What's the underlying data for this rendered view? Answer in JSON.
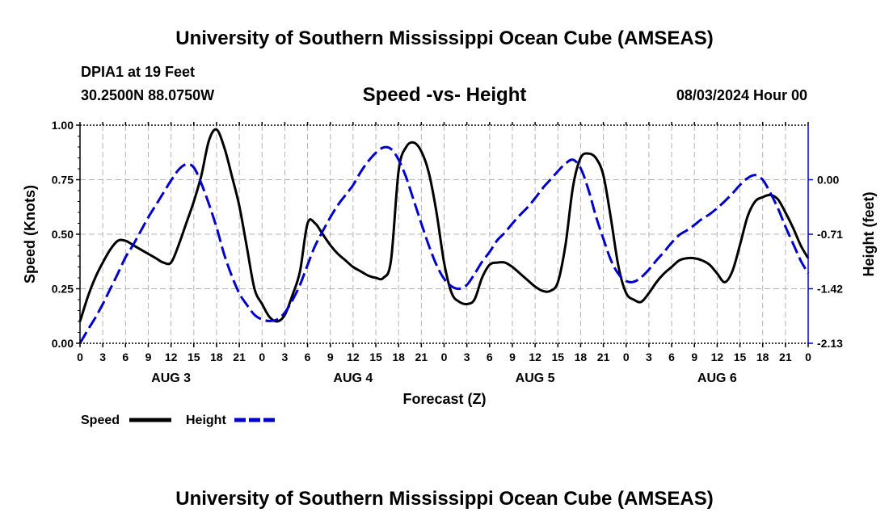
{
  "header": {
    "title": "University of Southern Mississippi Ocean Cube (AMSEAS)",
    "station": "DPIA1 at 19 Feet",
    "coords": "30.2500N  88.0750W",
    "chart_title": "Speed -vs- Height",
    "datetime": "08/03/2024 Hour 00"
  },
  "footer": {
    "title": "University of Southern Mississippi Ocean Cube (AMSEAS)"
  },
  "chart_data": {
    "type": "line",
    "title": "Speed -vs- Height",
    "xlabel": "Forecast (Z)",
    "ylabel": "Speed (Knots)",
    "y2label": "Height (feet)",
    "xlim": [
      0,
      96
    ],
    "ylim": [
      0,
      1
    ],
    "y2lim": [
      -2.13,
      0.71
    ],
    "x_ticks": [
      0,
      3,
      6,
      9,
      12,
      15,
      18,
      21,
      24,
      27,
      30,
      33,
      36,
      39,
      42,
      45,
      48,
      51,
      54,
      57,
      60,
      63,
      66,
      69,
      72,
      75,
      78,
      81,
      84,
      87,
      90,
      93,
      96
    ],
    "x_tick_labels": [
      "0",
      "3",
      "6",
      "9",
      "12",
      "15",
      "18",
      "21",
      "0",
      "3",
      "6",
      "9",
      "12",
      "15",
      "18",
      "21",
      "0",
      "3",
      "6",
      "9",
      "12",
      "15",
      "18",
      "21",
      "0",
      "3",
      "6",
      "9",
      "12",
      "15",
      "18",
      "21",
      "0"
    ],
    "day_labels": [
      {
        "x": 12,
        "label": "AUG 3"
      },
      {
        "x": 36,
        "label": "AUG 4"
      },
      {
        "x": 60,
        "label": "AUG 5"
      },
      {
        "x": 84,
        "label": "AUG 6"
      }
    ],
    "y_ticks": [
      0,
      0.25,
      0.5,
      0.75,
      1.0
    ],
    "y_tick_labels": [
      "0.00",
      "0.25",
      "0.50",
      "0.75",
      "1.00"
    ],
    "y2_ticks": [
      0.0,
      -0.71,
      -1.42,
      -2.13
    ],
    "y2_tick_labels": [
      "0.00",
      "-0.71",
      "-1.42",
      "-2.13"
    ],
    "grid": true,
    "legend": {
      "position": "bottom-left",
      "entries": [
        "Speed",
        "Height"
      ]
    },
    "series": [
      {
        "name": "Speed",
        "axis": "left",
        "color": "#000000",
        "style": "solid",
        "points": [
          [
            0,
            0.1
          ],
          [
            1,
            0.21
          ],
          [
            2,
            0.3
          ],
          [
            3,
            0.37
          ],
          [
            4,
            0.43
          ],
          [
            5,
            0.47
          ],
          [
            6,
            0.47
          ],
          [
            7,
            0.45
          ],
          [
            8,
            0.43
          ],
          [
            9,
            0.41
          ],
          [
            10,
            0.39
          ],
          [
            11,
            0.37
          ],
          [
            12,
            0.37
          ],
          [
            13,
            0.45
          ],
          [
            14,
            0.55
          ],
          [
            15,
            0.65
          ],
          [
            16,
            0.77
          ],
          [
            17,
            0.93
          ],
          [
            18,
            0.98
          ],
          [
            19,
            0.9
          ],
          [
            20,
            0.77
          ],
          [
            21,
            0.63
          ],
          [
            22,
            0.44
          ],
          [
            23,
            0.25
          ],
          [
            24,
            0.18
          ],
          [
            25,
            0.12
          ],
          [
            26,
            0.1
          ],
          [
            27,
            0.13
          ],
          [
            28,
            0.22
          ],
          [
            29,
            0.33
          ],
          [
            30,
            0.55
          ],
          [
            31,
            0.55
          ],
          [
            32,
            0.5
          ],
          [
            33,
            0.45
          ],
          [
            34,
            0.41
          ],
          [
            35,
            0.38
          ],
          [
            36,
            0.35
          ],
          [
            37,
            0.33
          ],
          [
            38,
            0.31
          ],
          [
            39,
            0.3
          ],
          [
            40,
            0.3
          ],
          [
            41,
            0.38
          ],
          [
            42,
            0.79
          ],
          [
            43,
            0.9
          ],
          [
            44,
            0.92
          ],
          [
            45,
            0.88
          ],
          [
            46,
            0.78
          ],
          [
            47,
            0.6
          ],
          [
            48,
            0.37
          ],
          [
            49,
            0.23
          ],
          [
            50,
            0.19
          ],
          [
            51,
            0.18
          ],
          [
            52,
            0.2
          ],
          [
            53,
            0.3
          ],
          [
            54,
            0.36
          ],
          [
            55,
            0.37
          ],
          [
            56,
            0.37
          ],
          [
            57,
            0.35
          ],
          [
            58,
            0.32
          ],
          [
            59,
            0.29
          ],
          [
            60,
            0.26
          ],
          [
            61,
            0.24
          ],
          [
            62,
            0.24
          ],
          [
            63,
            0.28
          ],
          [
            64,
            0.45
          ],
          [
            65,
            0.72
          ],
          [
            66,
            0.85
          ],
          [
            67,
            0.87
          ],
          [
            68,
            0.85
          ],
          [
            69,
            0.77
          ],
          [
            70,
            0.57
          ],
          [
            71,
            0.35
          ],
          [
            72,
            0.23
          ],
          [
            73,
            0.2
          ],
          [
            74,
            0.19
          ],
          [
            75,
            0.23
          ],
          [
            76,
            0.28
          ],
          [
            77,
            0.32
          ],
          [
            78,
            0.35
          ],
          [
            79,
            0.38
          ],
          [
            80,
            0.39
          ],
          [
            81,
            0.39
          ],
          [
            82,
            0.38
          ],
          [
            83,
            0.36
          ],
          [
            84,
            0.32
          ],
          [
            85,
            0.28
          ],
          [
            86,
            0.33
          ],
          [
            87,
            0.45
          ],
          [
            88,
            0.58
          ],
          [
            89,
            0.65
          ],
          [
            90,
            0.67
          ],
          [
            91,
            0.68
          ],
          [
            92,
            0.66
          ],
          [
            93,
            0.6
          ],
          [
            94,
            0.53
          ],
          [
            95,
            0.45
          ],
          [
            96,
            0.39
          ]
        ]
      },
      {
        "name": "Height",
        "axis": "right",
        "color": "#0000cc",
        "style": "dashed",
        "points": [
          [
            0,
            -2.13
          ],
          [
            1,
            -1.96
          ],
          [
            2,
            -1.8
          ],
          [
            3,
            -1.62
          ],
          [
            4,
            -1.42
          ],
          [
            5,
            -1.22
          ],
          [
            6,
            -1.01
          ],
          [
            7,
            -0.85
          ],
          [
            8,
            -0.67
          ],
          [
            9,
            -0.49
          ],
          [
            10,
            -0.33
          ],
          [
            11,
            -0.17
          ],
          [
            12,
            -0.01
          ],
          [
            13,
            0.13
          ],
          [
            14,
            0.2
          ],
          [
            15,
            0.16
          ],
          [
            16,
            -0.05
          ],
          [
            17,
            -0.32
          ],
          [
            18,
            -0.62
          ],
          [
            19,
            -0.97
          ],
          [
            20,
            -1.25
          ],
          [
            21,
            -1.48
          ],
          [
            22,
            -1.63
          ],
          [
            23,
            -1.76
          ],
          [
            24,
            -1.82
          ],
          [
            25,
            -1.84
          ],
          [
            26,
            -1.82
          ],
          [
            27,
            -1.73
          ],
          [
            28,
            -1.57
          ],
          [
            29,
            -1.37
          ],
          [
            30,
            -1.11
          ],
          [
            31,
            -0.86
          ],
          [
            32,
            -0.67
          ],
          [
            33,
            -0.49
          ],
          [
            34,
            -0.33
          ],
          [
            35,
            -0.2
          ],
          [
            36,
            -0.07
          ],
          [
            37,
            0.1
          ],
          [
            38,
            0.24
          ],
          [
            39,
            0.35
          ],
          [
            40,
            0.42
          ],
          [
            41,
            0.4
          ],
          [
            42,
            0.26
          ],
          [
            43,
            0.03
          ],
          [
            44,
            -0.27
          ],
          [
            45,
            -0.57
          ],
          [
            46,
            -0.86
          ],
          [
            47,
            -1.11
          ],
          [
            48,
            -1.29
          ],
          [
            49,
            -1.39
          ],
          [
            50,
            -1.42
          ],
          [
            51,
            -1.37
          ],
          [
            52,
            -1.23
          ],
          [
            53,
            -1.07
          ],
          [
            54,
            -0.94
          ],
          [
            55,
            -0.79
          ],
          [
            56,
            -0.69
          ],
          [
            57,
            -0.57
          ],
          [
            58,
            -0.46
          ],
          [
            59,
            -0.36
          ],
          [
            60,
            -0.24
          ],
          [
            61,
            -0.11
          ],
          [
            62,
            0.0
          ],
          [
            63,
            0.11
          ],
          [
            64,
            0.21
          ],
          [
            65,
            0.26
          ],
          [
            66,
            0.15
          ],
          [
            67,
            -0.12
          ],
          [
            68,
            -0.47
          ],
          [
            69,
            -0.77
          ],
          [
            70,
            -1.05
          ],
          [
            71,
            -1.23
          ],
          [
            72,
            -1.32
          ],
          [
            73,
            -1.33
          ],
          [
            74,
            -1.27
          ],
          [
            75,
            -1.17
          ],
          [
            76,
            -1.05
          ],
          [
            77,
            -0.94
          ],
          [
            78,
            -0.82
          ],
          [
            79,
            -0.72
          ],
          [
            80,
            -0.66
          ],
          [
            81,
            -0.59
          ],
          [
            82,
            -0.51
          ],
          [
            83,
            -0.45
          ],
          [
            84,
            -0.37
          ],
          [
            85,
            -0.28
          ],
          [
            86,
            -0.18
          ],
          [
            87,
            -0.07
          ],
          [
            88,
            0.02
          ],
          [
            89,
            0.06
          ],
          [
            90,
            0.0
          ],
          [
            91,
            -0.17
          ],
          [
            92,
            -0.37
          ],
          [
            93,
            -0.61
          ],
          [
            94,
            -0.83
          ],
          [
            95,
            -1.05
          ],
          [
            96,
            -1.22
          ]
        ]
      }
    ]
  }
}
